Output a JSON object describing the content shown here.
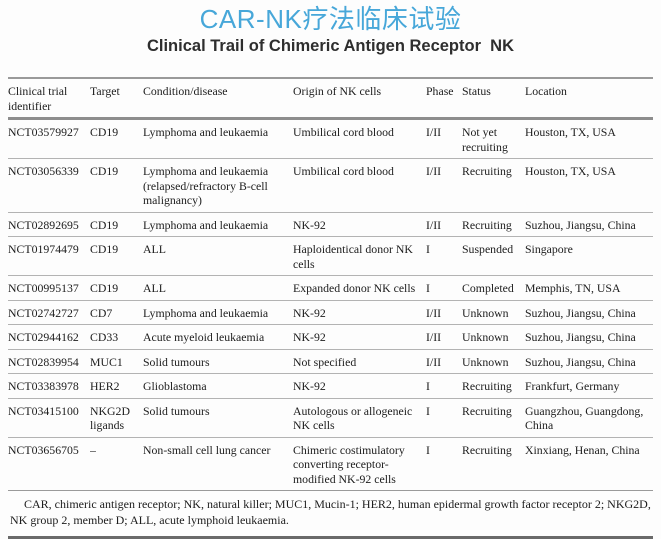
{
  "header": {
    "title_zh": "CAR-NK疗法临床试验",
    "title_en": "Clinical Trail of Chimeric Antigen Receptor  NK",
    "title_zh_color": "#47a7d9"
  },
  "table": {
    "columns": [
      "Clinical trial identifier",
      "Target",
      "Condition/disease",
      "Origin of NK cells",
      "Phase",
      "Status",
      "Location"
    ],
    "rows": [
      [
        "NCT03579927",
        "CD19",
        "Lymphoma and leukaemia",
        "Umbilical cord blood",
        "I/II",
        "Not yet recruiting",
        "Houston, TX, USA"
      ],
      [
        "NCT03056339",
        "CD19",
        "Lymphoma and leukaemia (relapsed/refractory B-cell malignancy)",
        "Umbilical cord blood",
        "I/II",
        "Recruiting",
        "Houston, TX, USA"
      ],
      [
        "NCT02892695",
        "CD19",
        "Lymphoma and leukaemia",
        "NK-92",
        "I/II",
        "Recruiting",
        "Suzhou, Jiangsu, China"
      ],
      [
        "NCT01974479",
        "CD19",
        "ALL",
        "Haploidentical donor NK cells",
        "I",
        "Suspended",
        "Singapore"
      ],
      [
        "NCT00995137",
        "CD19",
        "ALL",
        "Expanded donor NK cells",
        "I",
        "Completed",
        "Memphis, TN, USA"
      ],
      [
        "NCT02742727",
        "CD7",
        "Lymphoma and leukaemia",
        "NK-92",
        "I/II",
        "Unknown",
        "Suzhou, Jiangsu, China"
      ],
      [
        "NCT02944162",
        "CD33",
        "Acute myeloid leukaemia",
        "NK-92",
        "I/II",
        "Unknown",
        "Suzhou, Jiangsu, China"
      ],
      [
        "NCT02839954",
        "MUC1",
        "Solid tumours",
        "Not specified",
        "I/II",
        "Unknown",
        "Suzhou, Jiangsu, China"
      ],
      [
        "NCT03383978",
        "HER2",
        "Glioblastoma",
        "NK-92",
        "I",
        "Recruiting",
        "Frankfurt, Germany"
      ],
      [
        "NCT03415100",
        "NKG2D ligands",
        "Solid tumours",
        "Autologous or allogeneic NK cells",
        "I",
        "Recruiting",
        "Guangzhou, Guangdong, China"
      ],
      [
        "NCT03656705",
        "–",
        "Non-small cell lung cancer",
        "Chimeric costimulatory converting receptor-modified NK-92 cells",
        "I",
        "Recruiting",
        "Xinxiang, Henan, China"
      ]
    ]
  },
  "footnote": {
    "text": "CAR, chimeric antigen receptor; NK, natural killer; MUC1, Mucin-1; HER2, human epidermal growth factor receptor 2; NKG2D, NK group 2, member D; ALL, acute lymphoid leukaemia."
  }
}
